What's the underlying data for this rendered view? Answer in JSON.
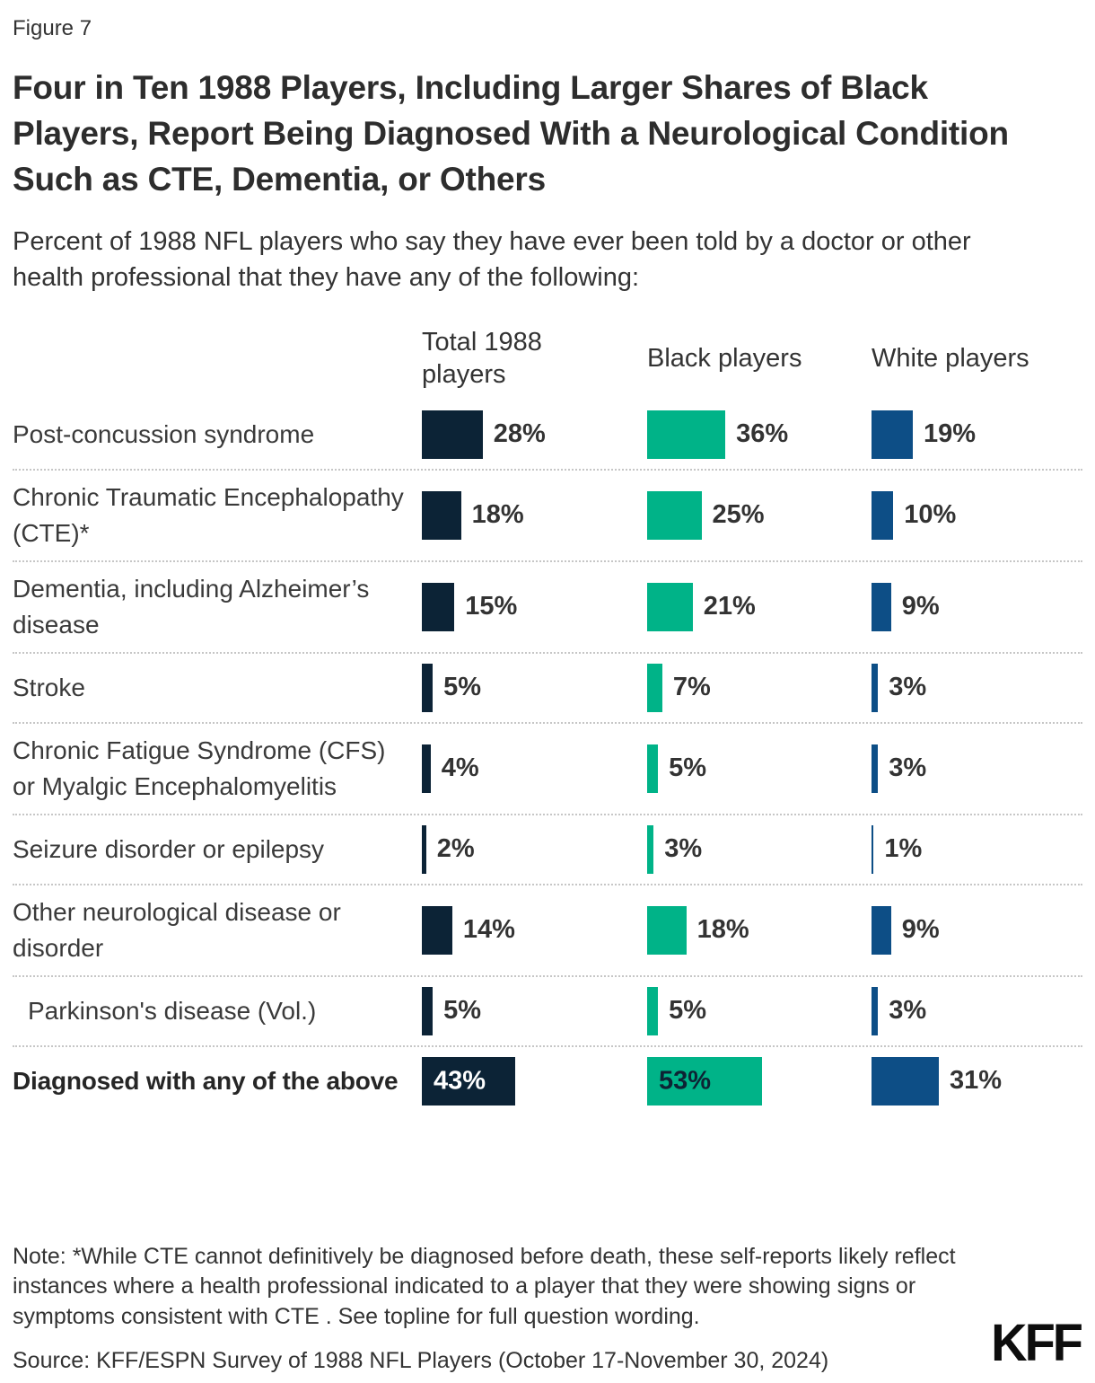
{
  "figure_label": "Figure 7",
  "title": "Four in Ten 1988 Players, Including Larger Shares of Black Players, Report Being Diagnosed With a Neurological Condition Such as CTE, Dementia, or Others",
  "subtitle": "Percent of 1988 NFL players who say they have ever been told by a doctor or other health professional that they have any of the following:",
  "note": "Note: *While CTE cannot definitively be diagnosed before death, these self-reports likely reflect instances where a health professional indicated to a player that they were showing signs or symptoms consistent with CTE . See topline for full question wording.",
  "source": "Source: KFF/ESPN Survey of 1988 NFL Players (October 17-November 30, 2024)",
  "logo_text": "KFF",
  "chart_data": {
    "type": "bar",
    "orientation": "horizontal",
    "title": "Four in Ten 1988 Players, Including Larger Shares of Black Players, Report Being Diagnosed With a Neurological Condition Such as CTE, Dementia, or Others",
    "subtitle": "Percent of 1988 NFL players who say they have ever been told by a doctor or other health professional that they have any of the following:",
    "value_suffix": "%",
    "xlim": [
      0,
      100
    ],
    "grid": false,
    "legend_position": "column-headers-top",
    "categories": [
      "Post-concussion syndrome",
      "Chronic Traumatic Encephalopathy (CTE)*",
      "Dementia, including Alzheimer’s disease",
      "Stroke",
      "Chronic Fatigue Syndrome (CFS) or Myalgic Encephalomyelitis",
      "Seizure disorder or epilepsy",
      "Other neurological disease or disorder",
      "Parkinson's disease (Vol.)",
      "Diagnosed with any of the above"
    ],
    "series": [
      {
        "name": "Total 1988 players",
        "color": "#0c2336",
        "inside_label_color": "#ffffff",
        "value_label_inside_on_emphasized": true,
        "values": [
          28,
          18,
          15,
          5,
          4,
          2,
          14,
          5,
          43
        ]
      },
      {
        "name": "Black players",
        "color": "#00b388",
        "inside_label_color": "#0d2334",
        "value_label_inside_on_emphasized": true,
        "values": [
          36,
          25,
          21,
          7,
          5,
          3,
          18,
          5,
          53
        ]
      },
      {
        "name": "White players",
        "color": "#0d4e86",
        "inside_label_color": "#ffffff",
        "value_label_inside_on_emphasized": false,
        "values": [
          19,
          10,
          9,
          3,
          3,
          1,
          9,
          3,
          31
        ]
      }
    ],
    "indented_rows": [
      7
    ],
    "emphasized_rows": [
      8
    ]
  }
}
